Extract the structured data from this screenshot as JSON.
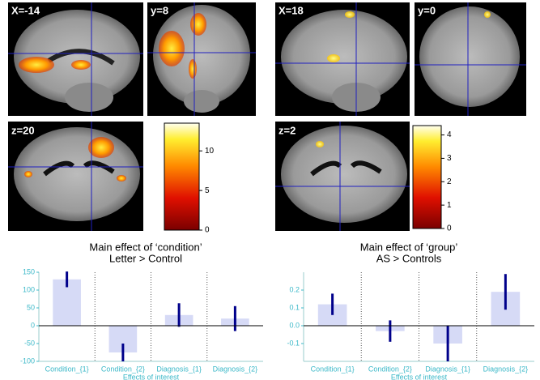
{
  "brain_panels": [
    {
      "slices": [
        "X=-14",
        "y=8",
        "z=20"
      ],
      "colorbar_lim": [
        0,
        13.5
      ],
      "colorbar_ticks": [
        0,
        5,
        10
      ]
    },
    {
      "slices": [
        "X=18",
        "y=0",
        "z=2"
      ],
      "colorbar_lim": [
        0,
        4.4
      ],
      "colorbar_ticks": [
        0,
        1,
        2,
        3,
        4
      ]
    }
  ],
  "chart_data": [
    {
      "type": "bar",
      "title": "Main effect of ‘condition’",
      "subtitle": "Letter > Control",
      "categories": [
        "Condition_{1}",
        "Condition_{2}",
        "Diagnosis_{1}",
        "Diagnosis_{2}"
      ],
      "values": [
        130,
        -75,
        30,
        20
      ],
      "errors": [
        22,
        25,
        33,
        35
      ],
      "xlabel": "Effects of interest",
      "color": "#d6daf6",
      "error_color": "#00008b",
      "ylim": [
        -100,
        150
      ],
      "yticks": [
        -100,
        -50,
        0,
        50,
        100,
        150
      ]
    },
    {
      "type": "bar",
      "title": "Main effect of ‘group’",
      "subtitle": "AS > Controls",
      "categories": [
        "Condition_{1}",
        "Condition_{2}",
        "Diagnosis_{1}",
        "Diagnosis_{2}"
      ],
      "values": [
        0.12,
        -0.03,
        -0.1,
        0.19
      ],
      "errors": [
        0.06,
        0.06,
        0.1,
        0.1
      ],
      "xlabel": "Effects of interest",
      "color": "#d6daf6",
      "error_color": "#00008b",
      "ylim": [
        -0.2,
        0.3
      ],
      "yticks": [
        -0.1,
        {
          "value": 0,
          "label": "0.0"
        },
        0.1,
        0.2
      ]
    }
  ]
}
